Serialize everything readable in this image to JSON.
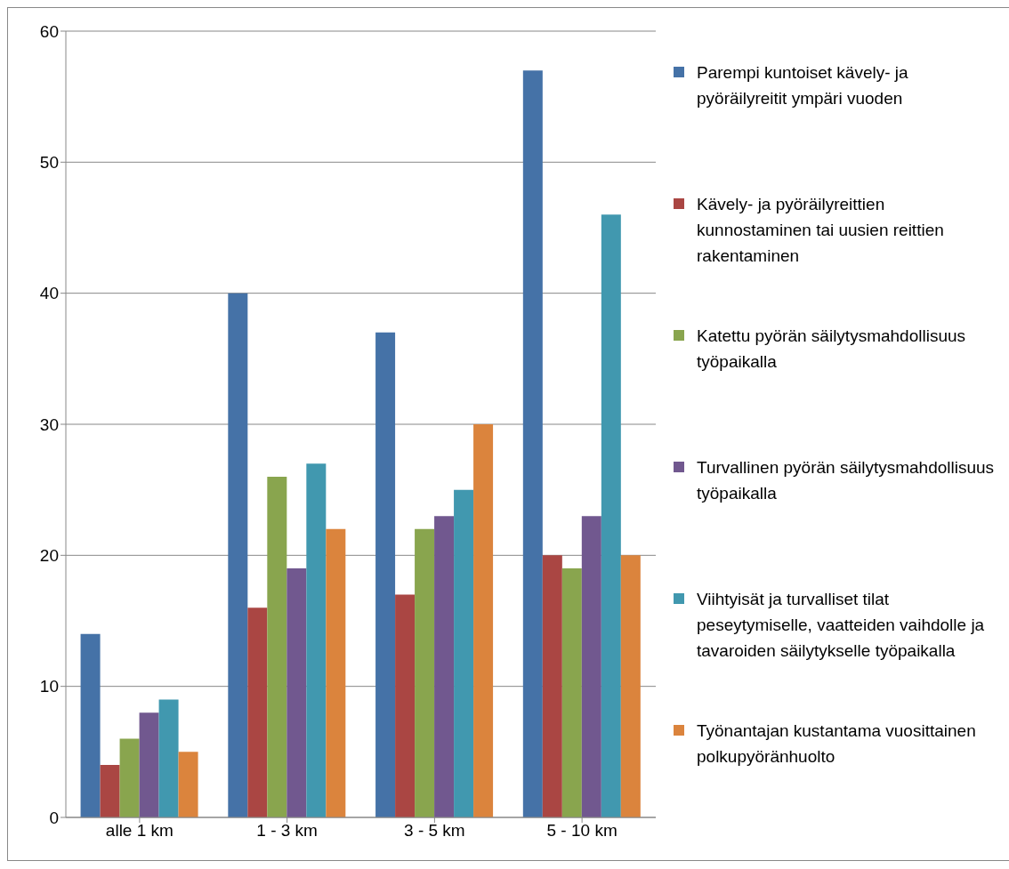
{
  "chart_data": {
    "type": "bar",
    "categories": [
      "alle 1 km",
      "1 - 3 km",
      "3 - 5 km",
      "5 - 10 km"
    ],
    "series": [
      {
        "name": "Parempi kuntoiset kävely- ja pyöräilyreitit ympäri vuoden",
        "color": "#4572a7",
        "values": [
          14,
          40,
          37,
          57
        ]
      },
      {
        "name": "Kävely- ja pyöräilyreittien kunnostaminen tai uusien reittien rakentaminen",
        "color": "#aa4643",
        "values": [
          4,
          16,
          17,
          20
        ]
      },
      {
        "name": "Katettu pyörän säilytysmahdollisuus työpaikalla",
        "color": "#89a54e",
        "values": [
          6,
          26,
          22,
          19
        ]
      },
      {
        "name": "Turvallinen pyörän säilytysmahdollisuus työpaikalla",
        "color": "#71588f",
        "values": [
          8,
          19,
          23,
          23
        ]
      },
      {
        "name": "Viihtyisät ja turvalliset tilat peseytymiselle, vaatteiden vaihdolle ja tavaroiden säilytykselle työpaikalla",
        "color": "#4198af",
        "values": [
          9,
          27,
          25,
          46
        ]
      },
      {
        "name": "Työnantajan kustantama vuosittainen polkupyöränhuolto",
        "color": "#db843d",
        "values": [
          5,
          22,
          30,
          20
        ]
      }
    ],
    "ylim": [
      0,
      60
    ],
    "yticks": [
      0,
      10,
      20,
      30,
      40,
      50,
      60
    ],
    "grid": "y",
    "legend": "right"
  }
}
